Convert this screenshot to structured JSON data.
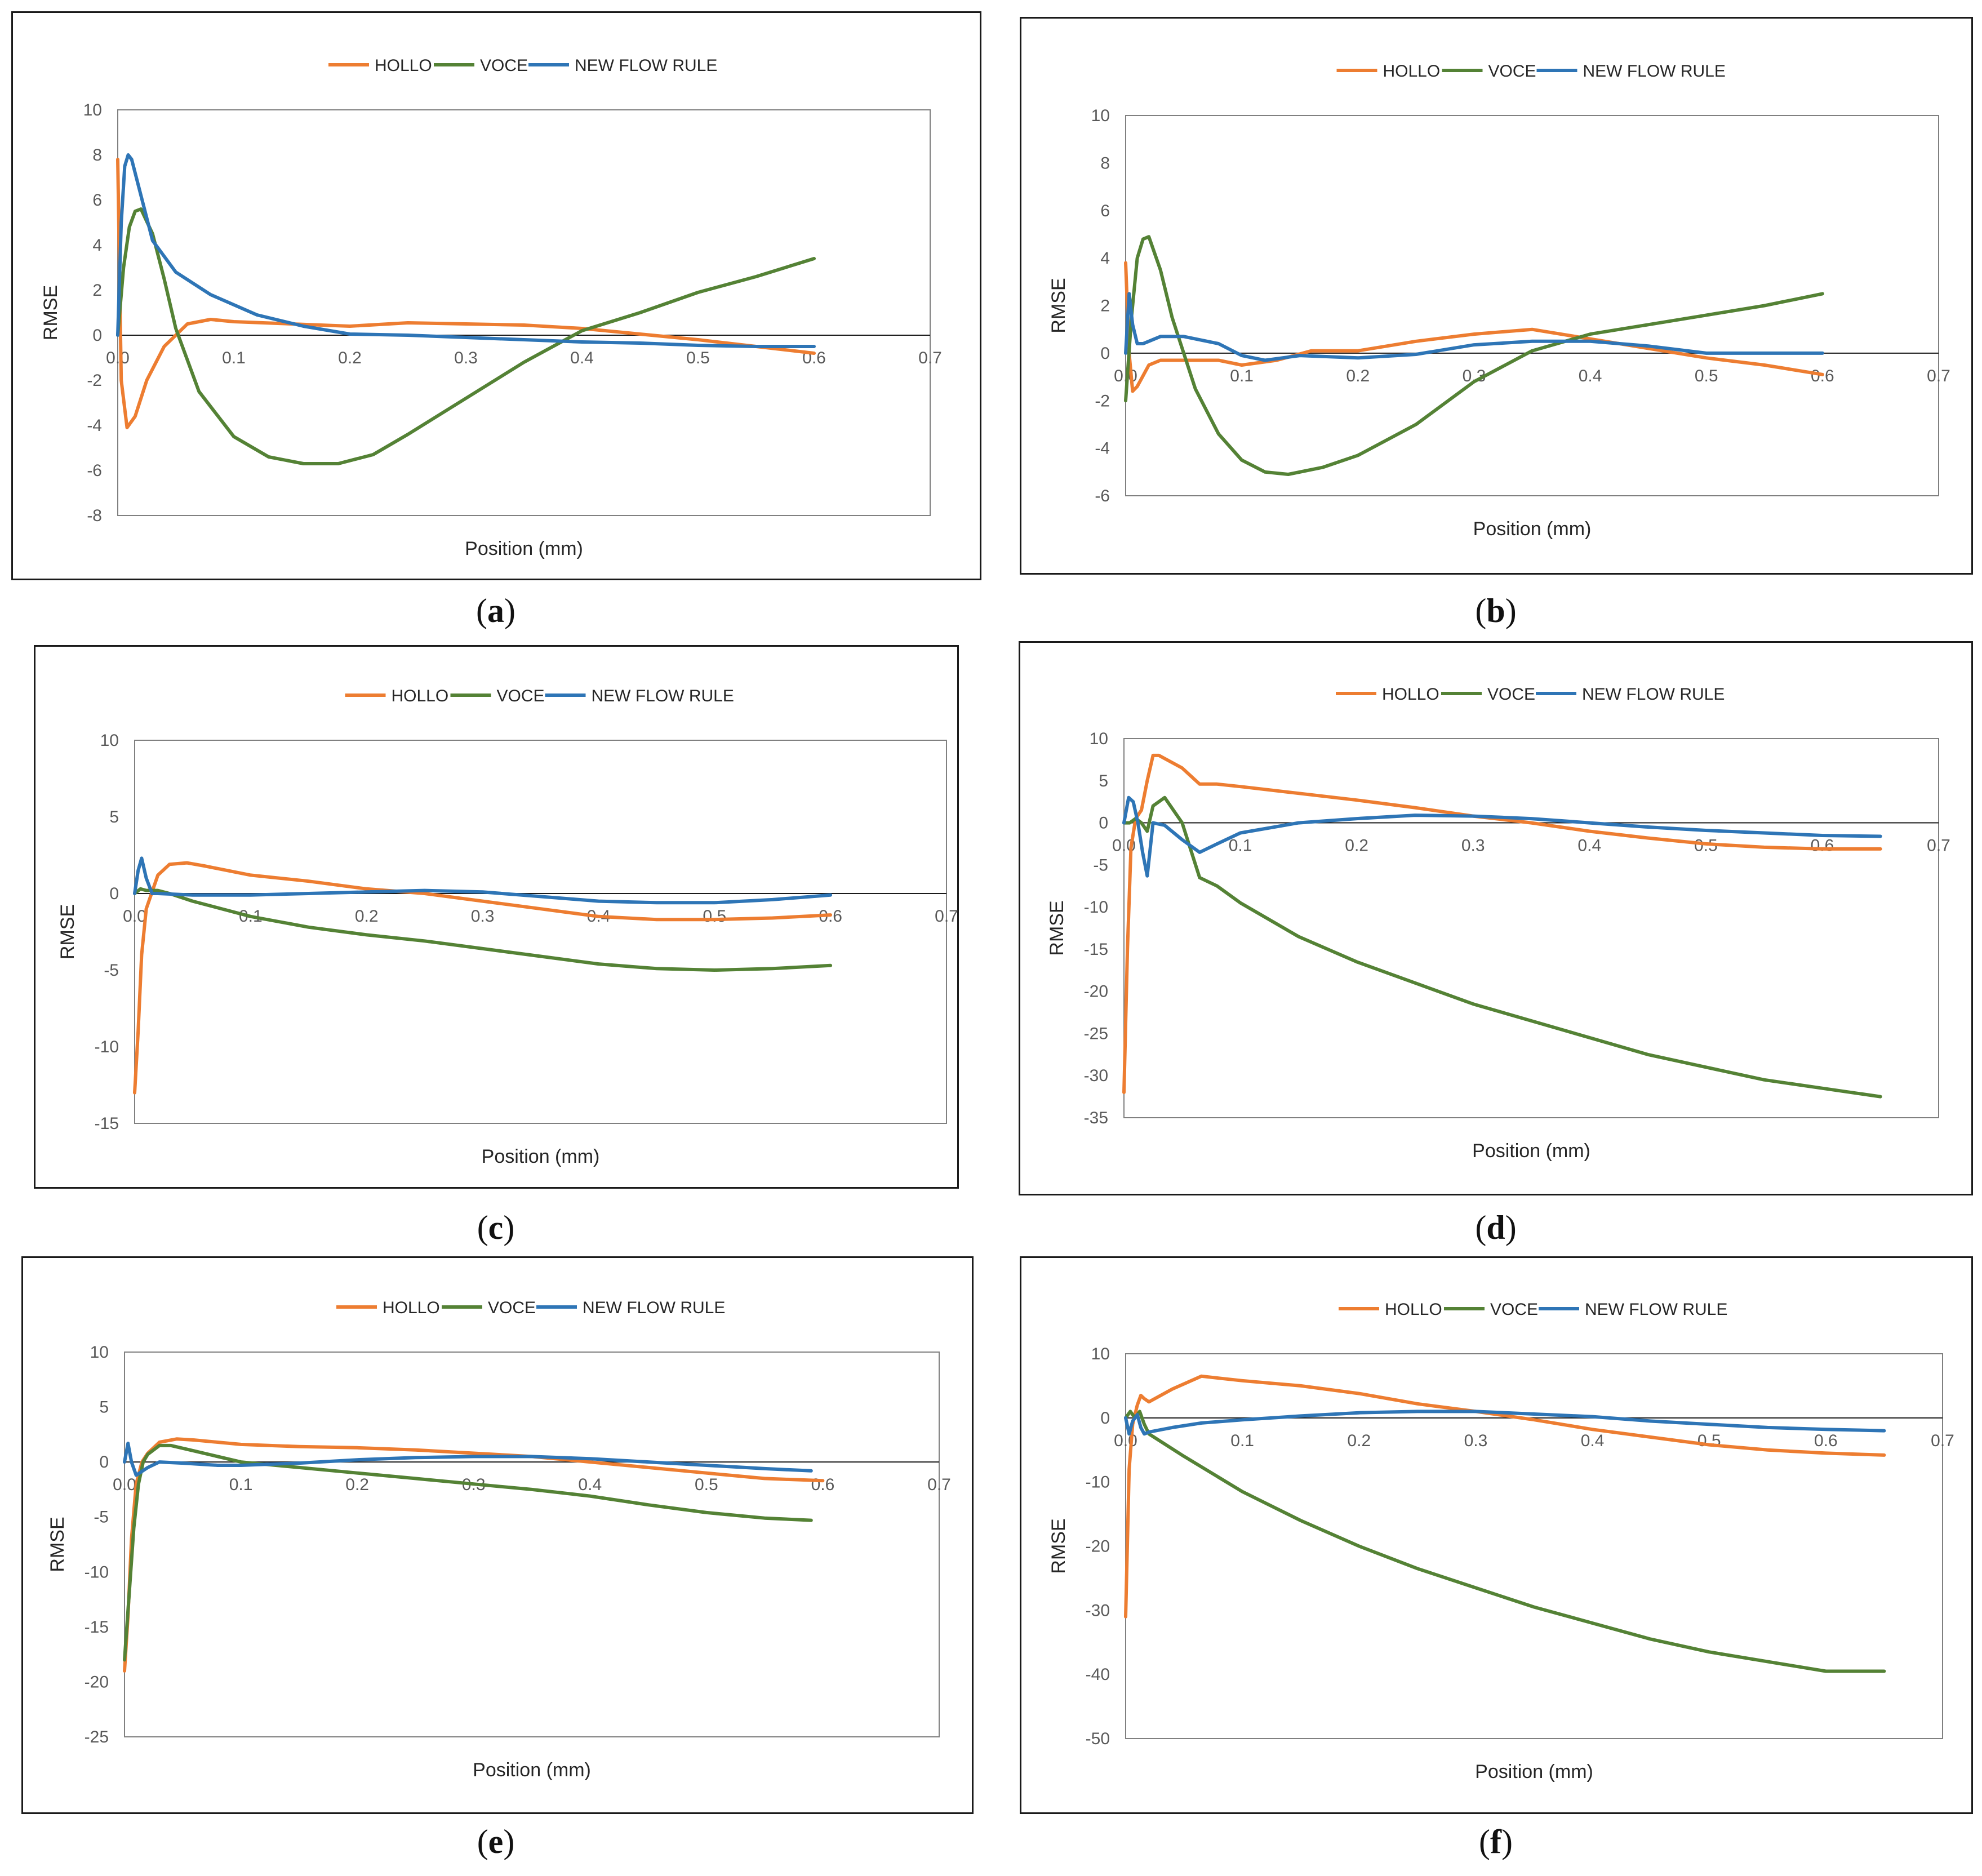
{
  "colors": {
    "HOLLO": "#ED7D31",
    "VOCE": "#548235",
    "NEW FLOW RULE": "#2E75B6"
  },
  "chart_data": [
    {
      "type": "line",
      "caption": "a",
      "xlabel": "Position (mm)",
      "ylabel": "RMSE",
      "xlim": [
        0,
        0.7
      ],
      "ylim": [
        -8,
        10
      ],
      "yticks": [
        -8,
        -6,
        -4,
        -2,
        0,
        2,
        4,
        6,
        8,
        10
      ],
      "xtick_labels": [
        "0.0",
        "0.1",
        "0.2",
        "0.3",
        "0.4",
        "0.5",
        "0.6",
        "0.7"
      ],
      "series": [
        {
          "name": "HOLLO",
          "x": [
            0,
            0.003,
            0.008,
            0.015,
            0.025,
            0.04,
            0.06,
            0.08,
            0.1,
            0.15,
            0.2,
            0.25,
            0.3,
            0.35,
            0.4,
            0.45,
            0.5,
            0.55,
            0.6
          ],
          "y": [
            7.8,
            -2,
            -4.1,
            -3.6,
            -2,
            -0.5,
            0.5,
            0.7,
            0.6,
            0.5,
            0.4,
            0.55,
            0.5,
            0.45,
            0.3,
            0.05,
            -0.2,
            -0.5,
            -0.8
          ]
        },
        {
          "name": "VOCE",
          "x": [
            0,
            0.005,
            0.01,
            0.015,
            0.02,
            0.03,
            0.04,
            0.05,
            0.07,
            0.1,
            0.13,
            0.16,
            0.19,
            0.22,
            0.25,
            0.3,
            0.35,
            0.4,
            0.45,
            0.5,
            0.55,
            0.6
          ],
          "y": [
            0,
            3,
            4.8,
            5.5,
            5.6,
            4.5,
            2.5,
            0.3,
            -2.5,
            -4.5,
            -5.4,
            -5.7,
            -5.7,
            -5.3,
            -4.4,
            -2.8,
            -1.2,
            0.2,
            1,
            1.9,
            2.6,
            3.4
          ]
        },
        {
          "name": "NEW FLOW RULE",
          "x": [
            0,
            0.003,
            0.006,
            0.009,
            0.012,
            0.02,
            0.03,
            0.05,
            0.08,
            0.12,
            0.16,
            0.2,
            0.25,
            0.3,
            0.35,
            0.4,
            0.45,
            0.5,
            0.55,
            0.6
          ],
          "y": [
            0,
            5,
            7.5,
            8,
            7.8,
            6.2,
            4.2,
            2.8,
            1.8,
            0.9,
            0.4,
            0.05,
            0,
            -0.1,
            -0.2,
            -0.3,
            -0.35,
            -0.45,
            -0.5,
            -0.5
          ]
        }
      ]
    },
    {
      "type": "line",
      "caption": "b",
      "xlabel": "Position (mm)",
      "ylabel": "RMSE",
      "xlim": [
        0,
        0.7
      ],
      "ylim": [
        -6,
        10
      ],
      "yticks": [
        -6,
        -4,
        -2,
        0,
        2,
        4,
        6,
        8,
        10
      ],
      "xtick_labels": [
        "0.0",
        "0.1",
        "0.2",
        "0.3",
        "0.4",
        "0.5",
        "0.6",
        "0.7"
      ],
      "series": [
        {
          "name": "HOLLO",
          "x": [
            0,
            0.003,
            0.006,
            0.01,
            0.02,
            0.03,
            0.05,
            0.08,
            0.1,
            0.13,
            0.16,
            0.2,
            0.25,
            0.3,
            0.35,
            0.4,
            0.45,
            0.5,
            0.55,
            0.6
          ],
          "y": [
            3.8,
            0,
            -1.6,
            -1.4,
            -0.5,
            -0.3,
            -0.3,
            -0.3,
            -0.5,
            -0.3,
            0.1,
            0.1,
            0.5,
            0.8,
            1,
            0.6,
            0.2,
            -0.2,
            -0.5,
            -0.9
          ]
        },
        {
          "name": "VOCE",
          "x": [
            0,
            0.005,
            0.01,
            0.015,
            0.02,
            0.03,
            0.04,
            0.06,
            0.08,
            0.1,
            0.12,
            0.14,
            0.17,
            0.2,
            0.25,
            0.3,
            0.35,
            0.4,
            0.45,
            0.5,
            0.55,
            0.6
          ],
          "y": [
            -2,
            1.5,
            4,
            4.8,
            4.9,
            3.5,
            1.5,
            -1.5,
            -3.4,
            -4.5,
            -5,
            -5.1,
            -4.8,
            -4.3,
            -3,
            -1.2,
            0.1,
            0.8,
            1.2,
            1.6,
            2,
            2.5
          ]
        },
        {
          "name": "NEW FLOW RULE",
          "x": [
            0,
            0.003,
            0.006,
            0.01,
            0.015,
            0.02,
            0.03,
            0.05,
            0.08,
            0.1,
            0.12,
            0.15,
            0.2,
            0.25,
            0.3,
            0.35,
            0.4,
            0.45,
            0.5,
            0.55,
            0.6
          ],
          "y": [
            0,
            2.5,
            1.2,
            0.4,
            0.4,
            0.5,
            0.7,
            0.7,
            0.4,
            -0.1,
            -0.3,
            -0.1,
            -0.2,
            -0.05,
            0.35,
            0.5,
            0.5,
            0.3,
            0,
            0,
            0
          ]
        }
      ]
    },
    {
      "type": "line",
      "caption": "c",
      "xlabel": "Position (mm)",
      "ylabel": "RMSE",
      "xlim": [
        0,
        0.7
      ],
      "ylim": [
        -15,
        10
      ],
      "yticks": [
        -15,
        -10,
        -5,
        0,
        5,
        10
      ],
      "xtick_labels": [
        "0.0",
        "0.1",
        "0.2",
        "0.3",
        "0.4",
        "0.5",
        "0.6",
        "0.7"
      ],
      "series": [
        {
          "name": "HOLLO",
          "x": [
            0,
            0.003,
            0.006,
            0.01,
            0.02,
            0.03,
            0.045,
            0.06,
            0.1,
            0.15,
            0.2,
            0.25,
            0.3,
            0.35,
            0.4,
            0.45,
            0.5,
            0.55,
            0.6
          ],
          "y": [
            -13,
            -9,
            -4,
            -1,
            1.2,
            1.9,
            2,
            1.8,
            1.2,
            0.8,
            0.3,
            0,
            -0.5,
            -1,
            -1.5,
            -1.7,
            -1.7,
            -1.6,
            -1.4
          ]
        },
        {
          "name": "VOCE",
          "x": [
            0,
            0.005,
            0.01,
            0.02,
            0.03,
            0.05,
            0.1,
            0.15,
            0.2,
            0.25,
            0.3,
            0.35,
            0.4,
            0.45,
            0.5,
            0.55,
            0.6
          ],
          "y": [
            0,
            0.3,
            0.2,
            0.2,
            0,
            -0.5,
            -1.5,
            -2.2,
            -2.7,
            -3.1,
            -3.6,
            -4.1,
            -4.6,
            -4.9,
            -5,
            -4.9,
            -4.7
          ]
        },
        {
          "name": "NEW FLOW RULE",
          "x": [
            0,
            0.003,
            0.006,
            0.01,
            0.015,
            0.02,
            0.05,
            0.1,
            0.15,
            0.2,
            0.25,
            0.3,
            0.35,
            0.4,
            0.45,
            0.5,
            0.55,
            0.6
          ],
          "y": [
            0,
            1.5,
            2.3,
            1,
            0,
            0,
            -0.1,
            -0.1,
            0,
            0.1,
            0.2,
            0.1,
            -0.2,
            -0.5,
            -0.6,
            -0.6,
            -0.4,
            -0.1
          ]
        }
      ]
    },
    {
      "type": "line",
      "caption": "d",
      "xlabel": "Position (mm)",
      "ylabel": "RMSE",
      "xlim": [
        0,
        0.7
      ],
      "ylim": [
        -35,
        10
      ],
      "yticks": [
        -35,
        -30,
        -25,
        -20,
        -15,
        -10,
        -5,
        0,
        5,
        10
      ],
      "xtick_labels": [
        "0.0",
        "0.1",
        "0.2",
        "0.3",
        "0.4",
        "0.5",
        "0.6",
        "0.7"
      ],
      "series": [
        {
          "name": "HOLLO",
          "x": [
            0,
            0.003,
            0.006,
            0.01,
            0.015,
            0.02,
            0.025,
            0.03,
            0.05,
            0.065,
            0.08,
            0.1,
            0.15,
            0.2,
            0.25,
            0.3,
            0.35,
            0.4,
            0.45,
            0.5,
            0.55,
            0.6,
            0.65
          ],
          "y": [
            -32,
            -15,
            -3,
            0.5,
            1.5,
            5,
            8,
            8,
            6.5,
            4.6,
            4.6,
            4.3,
            3.5,
            2.7,
            1.8,
            0.8,
            0,
            -1,
            -1.8,
            -2.5,
            -2.9,
            -3.1,
            -3.1
          ]
        },
        {
          "name": "VOCE",
          "x": [
            0,
            0.005,
            0.01,
            0.015,
            0.02,
            0.025,
            0.035,
            0.05,
            0.065,
            0.08,
            0.1,
            0.15,
            0.2,
            0.25,
            0.3,
            0.35,
            0.4,
            0.45,
            0.5,
            0.55,
            0.6,
            0.65
          ],
          "y": [
            0,
            0,
            0.5,
            0,
            -1,
            2,
            3,
            0,
            -6.5,
            -7.5,
            -9.5,
            -13.5,
            -16.5,
            -19,
            -21.5,
            -23.5,
            -25.5,
            -27.5,
            -29,
            -30.5,
            -31.5,
            -32.5
          ]
        },
        {
          "name": "NEW FLOW RULE",
          "x": [
            0,
            0.004,
            0.008,
            0.012,
            0.016,
            0.02,
            0.025,
            0.035,
            0.05,
            0.065,
            0.08,
            0.1,
            0.15,
            0.2,
            0.25,
            0.3,
            0.35,
            0.4,
            0.45,
            0.5,
            0.55,
            0.6,
            0.65
          ],
          "y": [
            0,
            3,
            2.5,
            0,
            -3.5,
            -6.3,
            0,
            -0.3,
            -2,
            -3.5,
            -2.5,
            -1.2,
            0,
            0.5,
            0.9,
            0.8,
            0.5,
            0,
            -0.5,
            -0.9,
            -1.2,
            -1.5,
            -1.6
          ]
        }
      ]
    },
    {
      "type": "line",
      "caption": "e",
      "xlabel": "Position (mm)",
      "ylabel": "RMSE",
      "xlim": [
        0,
        0.7
      ],
      "ylim": [
        -25,
        10
      ],
      "yticks": [
        -25,
        -20,
        -15,
        -10,
        -5,
        0,
        5,
        10
      ],
      "xtick_labels": [
        "0.0",
        "0.1",
        "0.2",
        "0.3",
        "0.4",
        "0.5",
        "0.6",
        "0.7"
      ],
      "series": [
        {
          "name": "HOLLO",
          "x": [
            0,
            0.003,
            0.006,
            0.01,
            0.015,
            0.02,
            0.03,
            0.045,
            0.06,
            0.1,
            0.15,
            0.2,
            0.25,
            0.3,
            0.35,
            0.4,
            0.45,
            0.5,
            0.55,
            0.6
          ],
          "y": [
            -19,
            -14,
            -7,
            -2,
            0,
            0.8,
            1.8,
            2.1,
            2,
            1.6,
            1.4,
            1.3,
            1.1,
            0.8,
            0.5,
            0,
            -0.5,
            -1,
            -1.5,
            -1.7
          ]
        },
        {
          "name": "VOCE",
          "x": [
            0,
            0.004,
            0.008,
            0.012,
            0.016,
            0.02,
            0.03,
            0.04,
            0.06,
            0.1,
            0.15,
            0.2,
            0.25,
            0.3,
            0.35,
            0.4,
            0.45,
            0.5,
            0.55,
            0.59
          ],
          "y": [
            -18,
            -12,
            -6,
            -2,
            0,
            0.7,
            1.5,
            1.5,
            1,
            0,
            -0.5,
            -1,
            -1.5,
            -2,
            -2.5,
            -3.1,
            -3.9,
            -4.6,
            -5.1,
            -5.3
          ]
        },
        {
          "name": "NEW FLOW RULE",
          "x": [
            0,
            0.003,
            0.006,
            0.01,
            0.02,
            0.03,
            0.05,
            0.08,
            0.1,
            0.15,
            0.2,
            0.25,
            0.3,
            0.35,
            0.4,
            0.45,
            0.5,
            0.55,
            0.59
          ],
          "y": [
            0,
            1.7,
            0,
            -1.2,
            -0.5,
            0,
            -0.1,
            -0.3,
            -0.3,
            -0.1,
            0.2,
            0.4,
            0.5,
            0.5,
            0.3,
            0,
            -0.3,
            -0.6,
            -0.8
          ]
        }
      ]
    },
    {
      "type": "line",
      "caption": "f",
      "xlabel": "Position (mm)",
      "ylabel": "RMSE",
      "xlim": [
        0,
        0.7
      ],
      "ylim": [
        -50,
        10
      ],
      "yticks": [
        -50,
        -40,
        -30,
        -20,
        -10,
        0,
        10
      ],
      "xtick_labels": [
        "0.0",
        "0.1",
        "0.2",
        "0.3",
        "0.4",
        "0.5",
        "0.6",
        "0.7"
      ],
      "series": [
        {
          "name": "HOLLO",
          "x": [
            0,
            0.003,
            0.006,
            0.01,
            0.013,
            0.016,
            0.02,
            0.04,
            0.065,
            0.08,
            0.1,
            0.15,
            0.2,
            0.25,
            0.3,
            0.35,
            0.4,
            0.45,
            0.5,
            0.55,
            0.6,
            0.65
          ],
          "y": [
            -31,
            -8,
            -1,
            2,
            3.5,
            3,
            2.5,
            4.5,
            6.5,
            6.2,
            5.8,
            5,
            3.8,
            2.2,
            1,
            -0.3,
            -1.8,
            -3,
            -4.2,
            -5,
            -5.5,
            -5.8
          ]
        },
        {
          "name": "VOCE",
          "x": [
            0,
            0.004,
            0.008,
            0.012,
            0.016,
            0.02,
            0.05,
            0.1,
            0.15,
            0.2,
            0.25,
            0.3,
            0.35,
            0.4,
            0.45,
            0.5,
            0.55,
            0.6,
            0.65
          ],
          "y": [
            0,
            1,
            0,
            1,
            -1,
            -2.5,
            -6,
            -11.5,
            -16,
            -20,
            -23.5,
            -26.5,
            -29.5,
            -32,
            -34.5,
            -36.5,
            -38,
            -39.5,
            -39.5
          ]
        },
        {
          "name": "NEW FLOW RULE",
          "x": [
            0,
            0.003,
            0.006,
            0.01,
            0.013,
            0.016,
            0.02,
            0.04,
            0.065,
            0.1,
            0.15,
            0.2,
            0.25,
            0.3,
            0.35,
            0.4,
            0.45,
            0.5,
            0.55,
            0.6,
            0.65
          ],
          "y": [
            0,
            -2.5,
            -0.5,
            0.5,
            -1.5,
            -2.5,
            -2.2,
            -1.5,
            -0.8,
            -0.3,
            0.3,
            0.8,
            1,
            1,
            0.6,
            0.2,
            -0.5,
            -1,
            -1.5,
            -1.8,
            -2
          ]
        }
      ]
    }
  ]
}
